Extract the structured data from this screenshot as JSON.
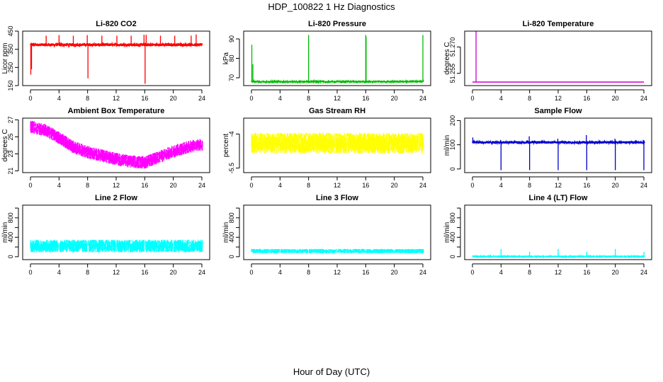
{
  "title": "HDP_100822  1 Hz Diagnostics",
  "xlabel": "Hour of Day (UTC)",
  "chart_data": [
    {
      "type": "line",
      "title": "Li-820 CO2",
      "ylabel": "Licor ppm",
      "color": "#ff0000",
      "xlim": [
        0,
        24
      ],
      "ylim": [
        150,
        450
      ],
      "xticks": [
        0,
        4,
        8,
        12,
        16,
        20,
        24
      ],
      "yticks": [
        150,
        250,
        350,
        450
      ],
      "base": 375,
      "noise": 8,
      "x_end": 24.1,
      "spikes": [
        {
          "x": 0.05,
          "y": 210
        },
        {
          "x": 0.15,
          "y": 240
        },
        {
          "x": 2.2,
          "y": 425
        },
        {
          "x": 4.0,
          "y": 428
        },
        {
          "x": 6.0,
          "y": 425
        },
        {
          "x": 7.95,
          "y": 428
        },
        {
          "x": 8.05,
          "y": 190
        },
        {
          "x": 10.0,
          "y": 425
        },
        {
          "x": 12.1,
          "y": 425
        },
        {
          "x": 14.1,
          "y": 425
        },
        {
          "x": 15.9,
          "y": 430
        },
        {
          "x": 16.05,
          "y": 160
        },
        {
          "x": 16.2,
          "y": 430
        },
        {
          "x": 18.2,
          "y": 425
        },
        {
          "x": 20.2,
          "y": 425
        },
        {
          "x": 22.5,
          "y": 425
        },
        {
          "x": 23.2,
          "y": 432
        }
      ]
    },
    {
      "type": "line",
      "title": "Li-820 Pressure",
      "ylabel": "kPa",
      "color": "#00bb00",
      "xlim": [
        0,
        24
      ],
      "ylim": [
        66,
        94
      ],
      "xticks": [
        0,
        4,
        8,
        12,
        16,
        20,
        24
      ],
      "yticks": [
        70,
        80,
        90
      ],
      "base": 68,
      "noise": 0.4,
      "x_end": 24.1,
      "spikes": [
        {
          "x": 0.05,
          "y": 87
        },
        {
          "x": 0.2,
          "y": 77
        },
        {
          "x": 8.0,
          "y": 92
        },
        {
          "x": 16.0,
          "y": 92
        },
        {
          "x": 16.05,
          "y": 91
        },
        {
          "x": 24.0,
          "y": 92
        }
      ]
    },
    {
      "type": "line",
      "title": "Li-820 Temperature",
      "ylabel": "degrees C",
      "color": "#cc00cc",
      "xlim": [
        0,
        24
      ],
      "ylim": [
        51.248,
        51.279
      ],
      "xticks": [
        0,
        4,
        8,
        12,
        16,
        20,
        24
      ],
      "yticks": [
        51.255,
        51.27
      ],
      "ytick_labels": [
        "51.255",
        "51.270"
      ],
      "base": 51.25,
      "noise": 0,
      "x_end": 24,
      "spikes": [
        {
          "x": 0.5,
          "y": 51.279
        }
      ]
    },
    {
      "type": "line",
      "title": "Ambient Box Temperature",
      "ylabel": "degrees C",
      "color": "#ff00ff",
      "xlim": [
        0,
        24
      ],
      "ylim": [
        20.8,
        27.2
      ],
      "xticks": [
        0,
        4,
        8,
        12,
        16,
        20,
        24
      ],
      "yticks": [
        21,
        23,
        25,
        27
      ],
      "x_end": 24.1,
      "trend": [
        {
          "x": 0,
          "y": 26.2
        },
        {
          "x": 2,
          "y": 25.8
        },
        {
          "x": 4,
          "y": 24.9
        },
        {
          "x": 6,
          "y": 23.8
        },
        {
          "x": 8,
          "y": 23.2
        },
        {
          "x": 10,
          "y": 22.8
        },
        {
          "x": 12,
          "y": 22.4
        },
        {
          "x": 14,
          "y": 22.1
        },
        {
          "x": 16,
          "y": 22.0
        },
        {
          "x": 18,
          "y": 22.6
        },
        {
          "x": 20,
          "y": 23.3
        },
        {
          "x": 22,
          "y": 23.8
        },
        {
          "x": 24,
          "y": 24.1
        }
      ],
      "band": 0.75
    },
    {
      "type": "line",
      "title": "Gas Stream RH",
      "ylabel": "percent",
      "color": "#ffff00",
      "xlim": [
        0,
        24
      ],
      "ylim": [
        -5.7,
        -3.3
      ],
      "xticks": [
        0,
        4,
        8,
        12,
        16,
        20,
        24
      ],
      "yticks": [
        -5.5,
        -4.0
      ],
      "base": -4.4,
      "band": 0.7,
      "x_end": 24.1
    },
    {
      "type": "line",
      "title": "Sample Flow",
      "ylabel": "ml/min",
      "color": "#0000cc",
      "xlim": [
        0,
        24
      ],
      "ylim": [
        -15,
        210
      ],
      "xticks": [
        0,
        4,
        8,
        12,
        16,
        20,
        24
      ],
      "yticks": [
        0,
        100,
        200
      ],
      "base": 110,
      "noise": 5,
      "x_end": 24.1,
      "spikes": [
        {
          "x": 0.05,
          "y": 130
        },
        {
          "x": 3.95,
          "y": 120
        },
        {
          "x": 4.0,
          "y": -5
        },
        {
          "x": 7.95,
          "y": 135
        },
        {
          "x": 8.0,
          "y": -5
        },
        {
          "x": 11.95,
          "y": 125
        },
        {
          "x": 12.0,
          "y": -5
        },
        {
          "x": 15.95,
          "y": 140
        },
        {
          "x": 16.0,
          "y": -5
        },
        {
          "x": 19.95,
          "y": 125
        },
        {
          "x": 20.0,
          "y": -5
        },
        {
          "x": 23.9,
          "y": 120
        },
        {
          "x": 24.0,
          "y": -5
        }
      ]
    },
    {
      "type": "line",
      "title": "Line 2 Flow",
      "ylabel": "ml/min",
      "color": "#00ffff",
      "xlim": [
        0,
        24
      ],
      "ylim": [
        -60,
        1060
      ],
      "xticks": [
        0,
        4,
        8,
        12,
        16,
        20,
        24
      ],
      "yticks": [
        0,
        200,
        400,
        600,
        800,
        1000
      ],
      "ytick_labels_shown": [
        0,
        400,
        800
      ],
      "base": 220,
      "band": 200,
      "x_end": 24.1,
      "gaps": [
        4.0,
        8.0,
        12.0,
        16.0,
        20.0
      ]
    },
    {
      "type": "line",
      "title": "Line 3 Flow",
      "ylabel": "ml/min",
      "color": "#00ffff",
      "xlim": [
        0,
        24
      ],
      "ylim": [
        -60,
        1060
      ],
      "xticks": [
        0,
        4,
        8,
        12,
        16,
        20,
        24
      ],
      "yticks": [
        0,
        200,
        400,
        600,
        800,
        1000
      ],
      "ytick_labels_shown": [
        0,
        400,
        800
      ],
      "base": 115,
      "band": 70,
      "x_end": 24.1,
      "gaps": [
        4.0,
        8.0,
        12.0,
        16.0,
        20.0
      ]
    },
    {
      "type": "line",
      "title": "Line 4 (LT) Flow",
      "ylabel": "ml/min",
      "color": "#00ffff",
      "xlim": [
        0,
        24
      ],
      "ylim": [
        -60,
        1060
      ],
      "xticks": [
        0,
        4,
        8,
        12,
        16,
        20,
        24
      ],
      "yticks": [
        0,
        200,
        400,
        600,
        800,
        1000
      ],
      "ytick_labels_shown": [
        0,
        400,
        800
      ],
      "base": 5,
      "noise": 6,
      "x_end": 24.1,
      "spikes": [
        {
          "x": 4.0,
          "y": 160
        },
        {
          "x": 8.0,
          "y": 100
        },
        {
          "x": 12.0,
          "y": 160
        },
        {
          "x": 16.0,
          "y": 100
        },
        {
          "x": 20.0,
          "y": 160
        },
        {
          "x": 24.0,
          "y": 100
        }
      ]
    }
  ]
}
